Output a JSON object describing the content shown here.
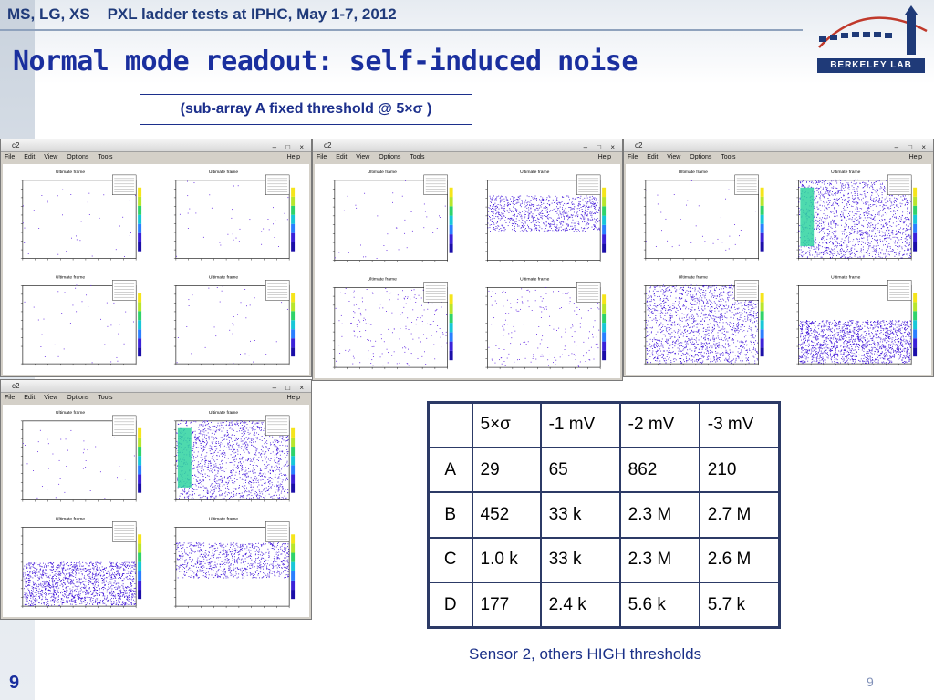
{
  "header": {
    "conference_line": "MS, LG, XS    PXL ladder tests at IPHC, May 1-7, 2012",
    "title": "Normal mode readout: self-induced noise",
    "logo_text": "BERKELEY LAB"
  },
  "threshold_note": "(sub-array A fixed threshold @ 5×σ )",
  "windows": {
    "title": "c2",
    "menu": [
      "File",
      "Edit",
      "View",
      "Options",
      "Tools"
    ],
    "help": "Help",
    "panel_title": "Ultimate frame"
  },
  "table": {
    "header": [
      "",
      "5×σ",
      "-1 mV",
      "-2 mV",
      "-3 mV"
    ],
    "rows": [
      [
        "A",
        "29",
        "65",
        "862",
        "210"
      ],
      [
        "B",
        "452",
        "33 k",
        "2.3 M",
        "2.7 M"
      ],
      [
        "C",
        "1.0 k",
        "33 k",
        "2.3 M",
        "2.6 M"
      ],
      [
        "D",
        "177",
        "2.4 k",
        "5.6 k",
        "5.7 k"
      ]
    ]
  },
  "caption": "Sensor 2, others HIGH thresholds",
  "page_number": "9",
  "colors": {
    "title_blue": "#1a2f9e",
    "table_border": "#2c3a66",
    "hit_purple": "#5a1ee0",
    "hit_dense": "#3b0fd8"
  }
}
